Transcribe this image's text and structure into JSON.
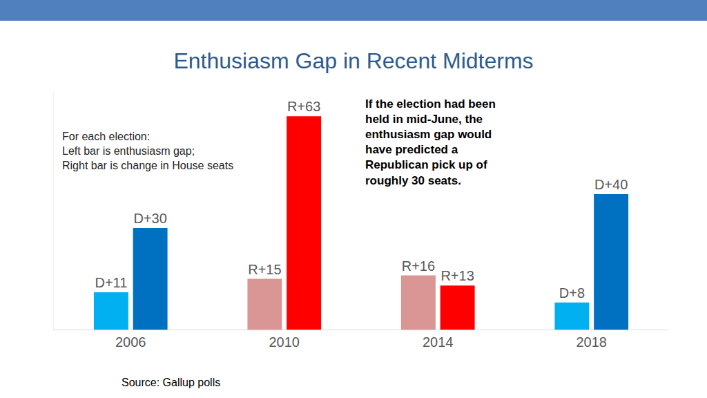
{
  "chart_data": {
    "type": "bar",
    "title": "Enthusiasm Gap in Recent Midterms",
    "categories": [
      "2006",
      "2010",
      "2014",
      "2018"
    ],
    "series": [
      {
        "colors": [
          "#00b0f0",
          "#da9694",
          "#da9694",
          "#00b0f0"
        ],
        "values": [
          11,
          15,
          16,
          8
        ],
        "value_labels": [
          "D+11",
          "R+15",
          "R+16",
          "D+8"
        ]
      },
      {
        "colors": [
          "#0070c0",
          "#ff0000",
          "#ff0000",
          "#0070c0"
        ],
        "values": [
          30,
          63,
          13,
          40
        ],
        "value_labels": [
          "D+30",
          "R+63",
          "R+13",
          "D+40"
        ]
      }
    ],
    "ylim": [
      0,
      70
    ],
    "yticks": [],
    "grid": false,
    "tick_labels": "x",
    "data_labels": true,
    "annotations": [
      {
        "lines": [
          "For each election:",
          "Left bar is enthusiasm gap;",
          "Right bar is change in House seats"
        ]
      },
      {
        "lines": [
          "If the election had been",
          "held in mid-June, the",
          "enthusiasm gap would",
          "have predicted a",
          "Republican pick up of",
          "roughly 30 seats."
        ]
      }
    ],
    "source": "Source: Gallup polls"
  }
}
